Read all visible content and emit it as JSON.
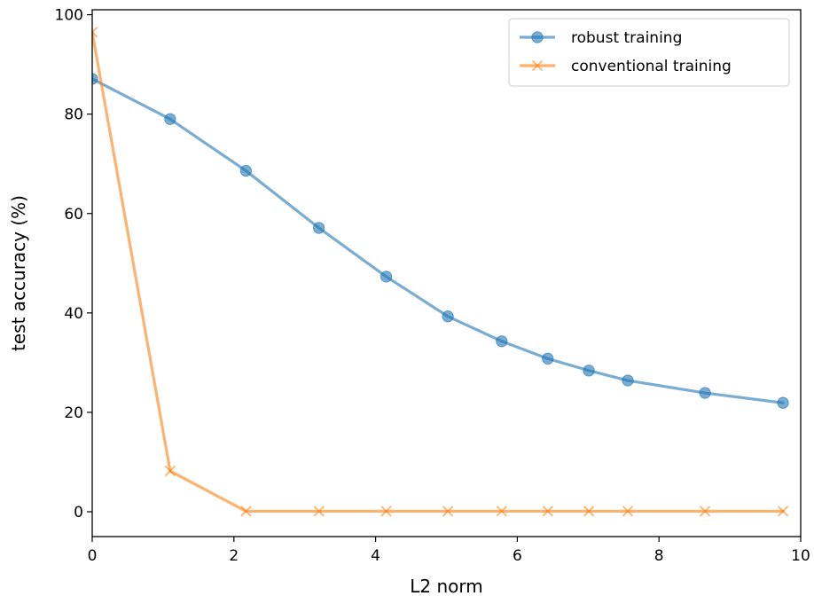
{
  "chart_data": {
    "type": "line",
    "xlabel": "L2 norm",
    "ylabel": "test accuracy (%)",
    "xlim": [
      0,
      10
    ],
    "ylim": [
      -5,
      101
    ],
    "xticks": [
      0,
      2,
      4,
      6,
      8,
      10
    ],
    "yticks": [
      0,
      20,
      40,
      60,
      80,
      100
    ],
    "grid": false,
    "legend_position": "top-right",
    "series": [
      {
        "name": "robust training",
        "color": "#1f77b4",
        "marker": "circle",
        "x": [
          0,
          1.1,
          2.17,
          3.2,
          4.15,
          5.02,
          5.78,
          6.43,
          7.01,
          7.56,
          8.65,
          9.75
        ],
        "y": [
          87.1,
          79.0,
          68.6,
          57.1,
          47.3,
          39.3,
          34.3,
          30.8,
          28.4,
          26.4,
          23.9,
          21.9
        ]
      },
      {
        "name": "conventional training",
        "color": "#ff7f0e",
        "marker": "x",
        "x": [
          0,
          1.1,
          2.17,
          3.2,
          4.15,
          5.02,
          5.78,
          6.43,
          7.01,
          7.56,
          8.65,
          9.75
        ],
        "y": [
          96.5,
          8.2,
          0.1,
          0.1,
          0.1,
          0.1,
          0.1,
          0.1,
          0.1,
          0.1,
          0.1,
          0.1
        ]
      }
    ]
  }
}
